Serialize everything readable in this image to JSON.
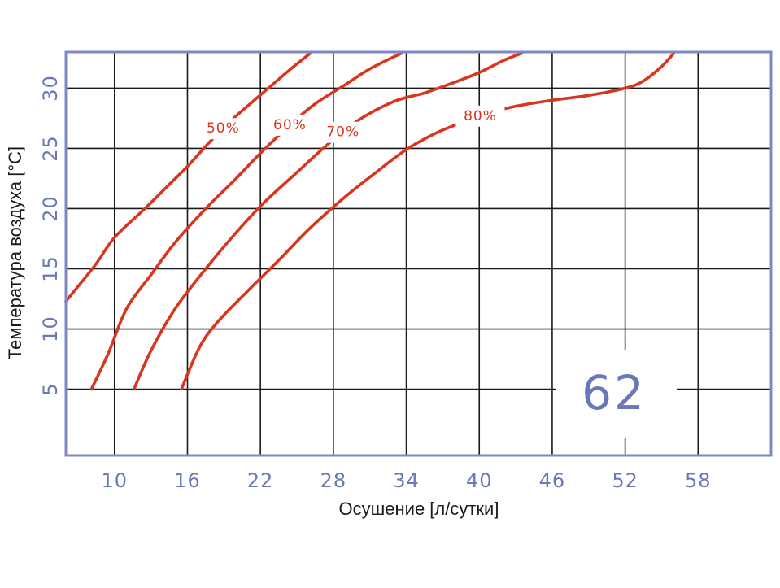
{
  "colors": {
    "frame": "#7d89c6",
    "grid": "#1a1a1a",
    "curve": "#d8361e",
    "tick_text": "#6a78b8",
    "model_text": "#6a78b8"
  },
  "model_number": "62",
  "chart_data": {
    "type": "line",
    "xlabel": "Осушение [л/сутки]",
    "ylabel": "Температура воздуха [°C]",
    "xlim": [
      6,
      64
    ],
    "ylim": [
      -0.5,
      33
    ],
    "x_ticks": [
      10,
      16,
      22,
      28,
      34,
      40,
      46,
      52,
      58
    ],
    "y_ticks": [
      5,
      10,
      15,
      20,
      25,
      30
    ],
    "grid": true,
    "series": [
      {
        "name": "50%",
        "points": [
          [
            6,
            12.3
          ],
          [
            8.4,
            15.3
          ],
          [
            10,
            17.6
          ],
          [
            12.5,
            20
          ],
          [
            14.5,
            22
          ],
          [
            16,
            23.5
          ],
          [
            17.8,
            25.5
          ],
          [
            19.8,
            27.5
          ],
          [
            21.5,
            29
          ],
          [
            23,
            30.3
          ],
          [
            24.5,
            31.6
          ],
          [
            26.1,
            32.9
          ]
        ]
      },
      {
        "name": "60%",
        "points": [
          [
            8.1,
            5
          ],
          [
            9.5,
            8
          ],
          [
            11,
            11.7
          ],
          [
            13,
            14.5
          ],
          [
            15,
            17.2
          ],
          [
            17.5,
            20
          ],
          [
            20,
            22.5
          ],
          [
            22,
            24.6
          ],
          [
            24.5,
            27
          ],
          [
            26.5,
            28.7
          ],
          [
            29,
            30.3
          ],
          [
            31,
            31.6
          ],
          [
            33.6,
            32.9
          ]
        ]
      },
      {
        "name": "70%",
        "points": [
          [
            11.6,
            5
          ],
          [
            13,
            8.2
          ],
          [
            15,
            11.7
          ],
          [
            17.5,
            15
          ],
          [
            20,
            18
          ],
          [
            22.3,
            20.5
          ],
          [
            25,
            23
          ],
          [
            27.5,
            25.3
          ],
          [
            30,
            27.3
          ],
          [
            33,
            28.9
          ],
          [
            35.5,
            29.6
          ],
          [
            38,
            30.5
          ],
          [
            40,
            31.3
          ],
          [
            42,
            32.3
          ],
          [
            43.5,
            32.9
          ]
        ]
      },
      {
        "name": "80%",
        "points": [
          [
            15.5,
            5
          ],
          [
            17,
            8.5
          ],
          [
            18.5,
            10.6
          ],
          [
            21,
            13.2
          ],
          [
            23.5,
            15.7
          ],
          [
            26,
            18.3
          ],
          [
            29,
            21
          ],
          [
            31.5,
            23
          ],
          [
            34,
            24.9
          ],
          [
            36.5,
            26.3
          ],
          [
            39,
            27.3
          ],
          [
            41,
            28
          ],
          [
            43,
            28.5
          ],
          [
            46,
            29
          ],
          [
            49,
            29.4
          ],
          [
            52,
            30
          ],
          [
            53.5,
            30.6
          ],
          [
            55,
            31.8
          ],
          [
            56,
            32.9
          ]
        ]
      }
    ]
  }
}
